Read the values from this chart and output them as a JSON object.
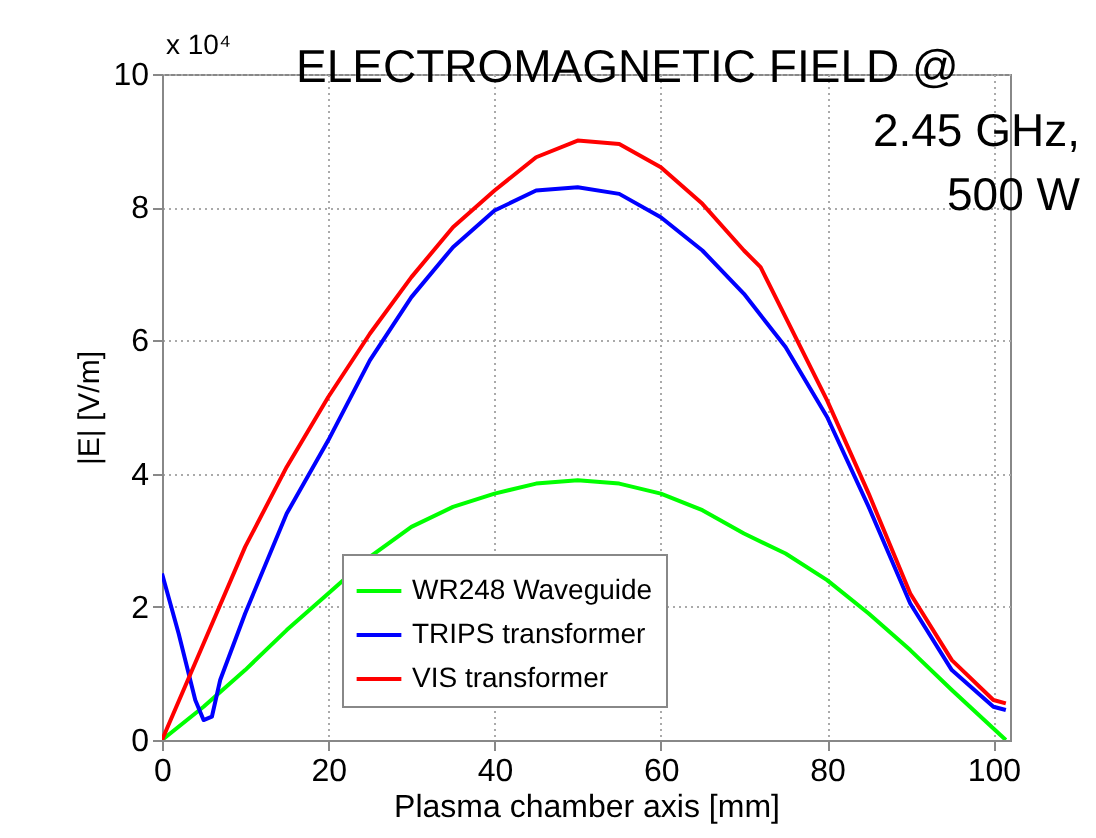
{
  "chart_data": {
    "type": "line",
    "title": "ELECTROMAGNETIC FIELD    @",
    "xlabel": "Plasma chamber axis [mm]",
    "ylabel": "|E| [V/m]",
    "annotations": [
      "x 10⁴",
      "2.45 GHz,",
      "500 W"
    ],
    "xlim": [
      0,
      102
    ],
    "xticks": [
      0,
      20,
      40,
      60,
      80,
      100
    ],
    "ylim": [
      0,
      10
    ],
    "yticks": [
      0,
      2,
      4,
      6,
      8,
      10
    ],
    "grid": true,
    "legend": "bottom left",
    "line_style": "solid",
    "series": [
      {
        "name": "WR248 Waveguide",
        "color": "#00ff00",
        "x": [
          0,
          5,
          10,
          15,
          20,
          25,
          30,
          35,
          40,
          45,
          50,
          55,
          60,
          65,
          70,
          75,
          80,
          85,
          90,
          95,
          101.5
        ],
        "values": [
          0,
          0.5,
          1.05,
          1.65,
          2.2,
          2.75,
          3.2,
          3.5,
          3.7,
          3.85,
          3.9,
          3.85,
          3.7,
          3.45,
          3.1,
          2.8,
          2.4,
          1.9,
          1.35,
          0.75,
          0
        ]
      },
      {
        "name": "TRIPS transformer",
        "color": "#0000ff",
        "x": [
          0,
          2,
          4,
          5,
          6,
          7,
          10,
          15,
          20,
          25,
          30,
          35,
          40,
          45,
          50,
          55,
          60,
          65,
          70,
          75,
          80,
          85,
          90,
          95,
          100,
          101.5
        ],
        "values": [
          2.5,
          1.6,
          0.6,
          0.3,
          0.35,
          0.9,
          1.9,
          3.4,
          4.5,
          5.7,
          6.65,
          7.4,
          7.95,
          8.25,
          8.3,
          8.2,
          7.85,
          7.35,
          6.7,
          5.9,
          4.85,
          3.5,
          2.05,
          1.05,
          0.5,
          0.45
        ]
      },
      {
        "name": "VIS transformer",
        "color": "#ff0000",
        "x": [
          0,
          5,
          10,
          15,
          20,
          25,
          30,
          35,
          40,
          45,
          50,
          55,
          60,
          65,
          70,
          72,
          80,
          85,
          90,
          95,
          100,
          101.5
        ],
        "values": [
          0,
          1.45,
          2.9,
          4.1,
          5.15,
          6.1,
          6.95,
          7.7,
          8.25,
          8.75,
          9.0,
          8.95,
          8.6,
          8.05,
          7.35,
          7.1,
          5.1,
          3.7,
          2.2,
          1.2,
          0.6,
          0.55
        ]
      }
    ]
  }
}
